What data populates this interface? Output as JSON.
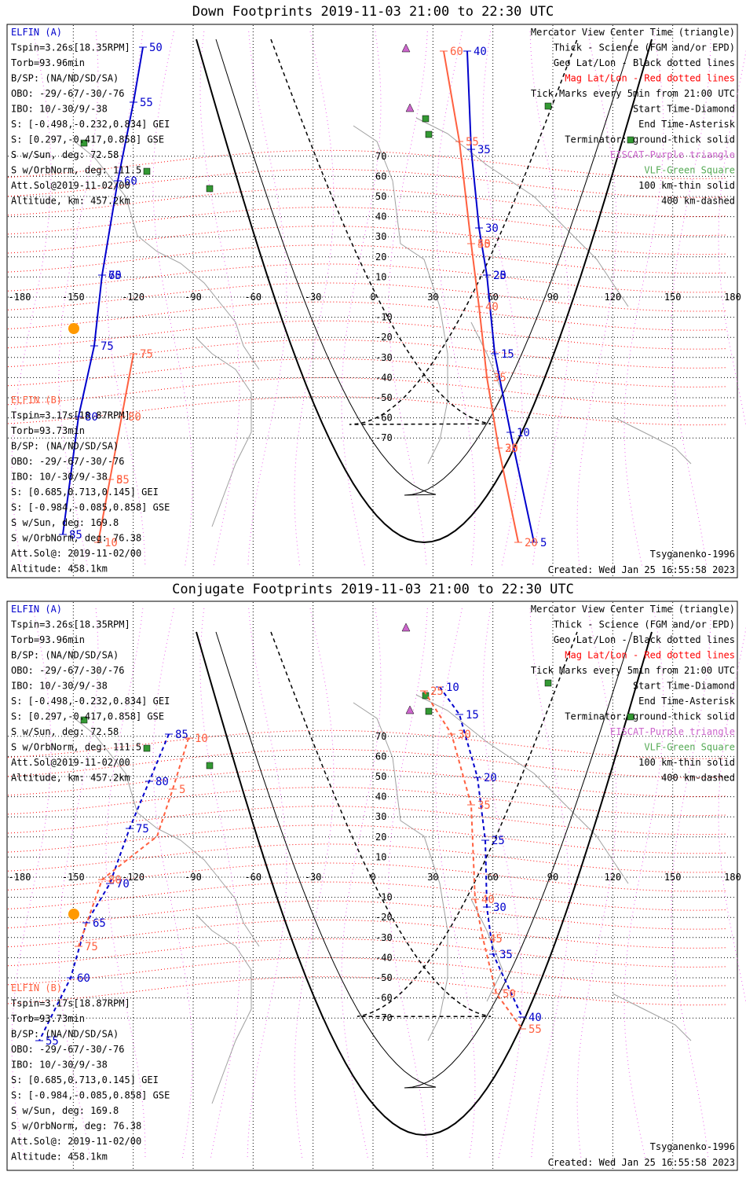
{
  "panels": [
    {
      "title": "Down Footprints 2019-11-03 21:00 to 22:30 UTC",
      "left_info_a": [
        "ELFIN (A)",
        "Tspin=3.26s[18.35RPM]",
        "Torb=93.96min",
        "B/SP: (NA/ND/SD/SA)",
        "OBO: -29/-67/-30/-76",
        "IBO: 10/-30/9/-38",
        "S: [-0.498,-0.232,0.834] GEI",
        "S: [0.297,-0.417,0.858] GSE",
        "S w/Sun, deg: 72.58",
        "S w/OrbNorm, deg: 111.5",
        "Att.Sol@2019-11-02/00",
        "Altitude, km: 457.2km"
      ],
      "left_info_b": [
        "ELFIN (B)",
        "Tspin=3.17s[18.87RPM]",
        "Torb=93.73min",
        "B/SP: (NA/ND/SD/SA)",
        "OBO: -29/-67/-30/-76",
        "IBO: 10/-30/9/-38",
        "S: [0.685,0.713,0.145] GEI",
        "S: [-0.984,-0.085,0.858] GSE",
        "S w/Sun, deg: 169.8",
        "S w/OrbNorm, deg: 76.38",
        "Att.Sol@: 2019-11-02/00",
        "Altitude: 458.1km"
      ],
      "legend": [
        "Mercator View Center Time (triangle)",
        "Thick - Science (FGM and/or EPD)",
        "Geo Lat/Lon - Black dotted lines",
        "Mag Lat/Lon - Red dotted lines",
        "Tick Marks every 5min from 21:00 UTC",
        "Start Time-Diamond",
        "End Time-Asterisk",
        "Terminator: ground-thick solid",
        "EISCAT-Purple triangle",
        "VLF-Green Square",
        "100 km-thin solid",
        "400 km-dashed"
      ],
      "model": "Tsyganenko-1996",
      "created": "Created: Wed Jan 25 16:55:58 2023",
      "track_a_labels": [
        "50",
        "55",
        "60",
        "65",
        "70",
        "75",
        "80",
        "85"
      ],
      "track_a2_labels": [
        "40",
        "35",
        "30",
        "25",
        "20",
        "15",
        "10",
        "5"
      ],
      "track_b_labels": [
        "75",
        "80",
        "85",
        "5",
        "10"
      ],
      "track_b2_labels": [
        "60",
        "55",
        "50",
        "45",
        "40",
        "35",
        "30",
        "25",
        "20"
      ]
    },
    {
      "title": "Conjugate Footprints 2019-11-03 21:00 to 22:30 UTC",
      "left_info_a": [
        "ELFIN (A)",
        "Tspin=3.26s[18.35RPM]",
        "Torb=93.96min",
        "B/SP: (NA/ND/SD/SA)",
        "OBO: -29/-67/-30/-76",
        "IBO: 10/-30/9/-38",
        "S: [-0.498,-0.232,0.834] GEI",
        "S: [0.297,-0.417,0.858] GSE",
        "S w/Sun, deg: 72.58",
        "S w/OrbNorm, deg: 111.5",
        "Att.Sol@2019-11-02/00",
        "Altitude, km: 457.2km"
      ],
      "left_info_b": [
        "ELFIN (B)",
        "Tspin=3.17s[18.87RPM]",
        "Torb=93.73min",
        "B/SP: (NA/ND/SD/SA)",
        "OBO: -29/-67/-30/-76",
        "IBO: 10/-30/9/-38",
        "S: [0.685,0.713,0.145] GEI",
        "S: [-0.984,-0.085,0.858] GSE",
        "S w/Sun, deg: 169.8",
        "S w/OrbNorm, deg: 76.38",
        "Att.Sol@: 2019-11-02/00",
        "Altitude: 458.1km"
      ],
      "legend": [
        "Mercator View Center Time (triangle)",
        "Thick - Science (FGM and/or EPD)",
        "Geo Lat/Lon - Black dotted lines",
        "Mag Lat/Lon - Red dotted lines",
        "Tick Marks every 5min from 21:00 UTC",
        "Start Time-Diamond",
        "End Time-Asterisk",
        "Terminator: ground-thick solid",
        "EISCAT-Purple triangle",
        "VLF-Green Square",
        "100 km-thin solid",
        "400 km-dashed"
      ],
      "model": "Tsyganenko-1996",
      "created": "Created: Wed Jan 25 16:55:58 2023",
      "track_a_labels": [
        "85",
        "80",
        "75",
        "70",
        "65",
        "60",
        "55"
      ],
      "track_a2_labels": [
        "10",
        "15",
        "20",
        "25",
        "30",
        "35",
        "40"
      ],
      "track_b_labels": [
        "10",
        "5",
        "80",
        "75"
      ],
      "track_b2_labels": [
        "25",
        "30",
        "35",
        "40",
        "45",
        "50",
        "55"
      ]
    }
  ],
  "lon_labels": [
    "-180",
    "-150",
    "-120",
    "-90",
    "-60",
    "-30",
    "0",
    "30",
    "60",
    "90",
    "120",
    "150",
    "180"
  ],
  "lat_labels": [
    "70",
    "60",
    "50",
    "40",
    "30",
    "20",
    "10",
    "0",
    "-10",
    "-20",
    "-30",
    "-40",
    "-50",
    "-60",
    "-70"
  ],
  "colors": {
    "elfin_a": "#0000cc",
    "elfin_b": "#ff6040",
    "geo_grid": "#000000",
    "mag_grid": "#ff0000",
    "eiscat": "#cc66cc",
    "vlf": "#339933",
    "coast": "#a0a0a0",
    "sun": "#ff9900"
  }
}
